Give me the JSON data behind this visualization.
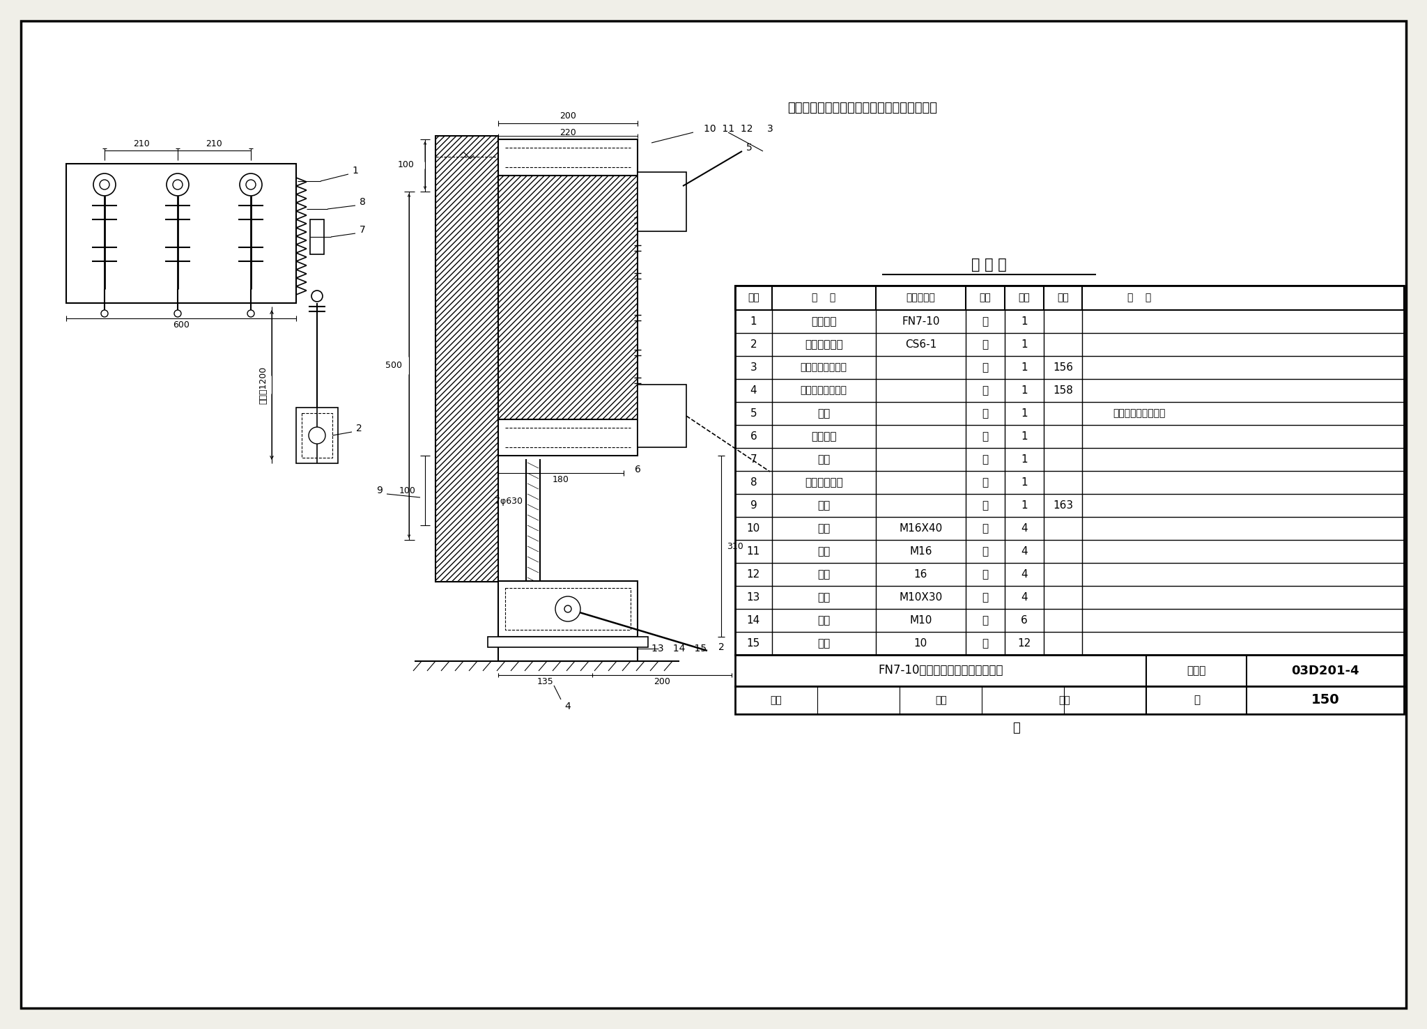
{
  "bg_color": "#f0efe8",
  "title_note": "说明：操动机构也可安装在负荷开关的右侧。",
  "table_title": "明 细 表",
  "table_headers": [
    "序号",
    "名    称",
    "型号及规格",
    "单位",
    "数量",
    "页次",
    "备    注"
  ],
  "table_rows": [
    [
      "1",
      "负荷开关",
      "FN7-10",
      "台",
      "1",
      "",
      ""
    ],
    [
      "2",
      "手力操动机构",
      "CS6-1",
      "台",
      "1",
      "",
      ""
    ],
    [
      "3",
      "负荷开关安装支架",
      "",
      "个",
      "1",
      "156",
      ""
    ],
    [
      "4",
      "操动机构安装支架",
      "",
      "个",
      "1",
      "158",
      ""
    ],
    [
      "5",
      "拉杆",
      "",
      "根",
      "1",
      "",
      "长度由工程设计决定"
    ],
    [
      "6",
      "焊接锂管",
      "",
      "根",
      "1",
      "",
      ""
    ],
    [
      "7",
      "转轴",
      "",
      "根",
      "1",
      "",
      ""
    ],
    [
      "8",
      "弹簧储能机构",
      "",
      "个",
      "1",
      "",
      ""
    ],
    [
      "9",
      "螺杆",
      "",
      "个",
      "1",
      "163",
      ""
    ],
    [
      "10",
      "螺栓",
      "M16X40",
      "个",
      "4",
      "",
      ""
    ],
    [
      "11",
      "螺母",
      "M16",
      "个",
      "4",
      "",
      ""
    ],
    [
      "12",
      "坠圈",
      "16",
      "个",
      "4",
      "",
      ""
    ],
    [
      "13",
      "螺栓",
      "M10X30",
      "个",
      "4",
      "",
      ""
    ],
    [
      "14",
      "螺母",
      "M10",
      "个",
      "6",
      "",
      ""
    ],
    [
      "15",
      "坠圈",
      "10",
      "个",
      "12",
      "",
      ""
    ]
  ],
  "footer_left": "FN7-10负荷开关在墙上支架上安装",
  "footer_mid": "图集号",
  "footer_mid_val": "03D201-4",
  "footer_bottom_right": "150",
  "page_label": "页",
  "footer_bottom_labels": [
    "审核",
    "校对",
    "设计"
  ]
}
